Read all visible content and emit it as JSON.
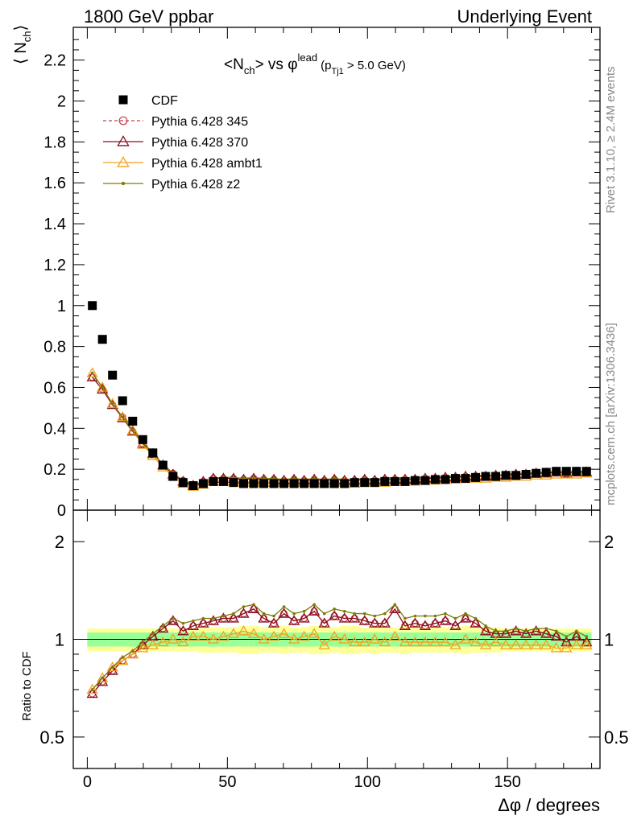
{
  "header": {
    "left": "1800 GeV ppbar",
    "right": "Underlying Event",
    "title_main": "<N",
    "title_sub": "ch",
    "title_vs": "> vs φ",
    "title_sup": "lead",
    "title_cut_a": "(p",
    "title_cut_sub": "Tj1",
    "title_cut_b": " > 5.0 GeV)"
  },
  "side_text": {
    "rivet": "Rivet 3.1.10, ≥ 2.4M events",
    "mcplots": "mcplots.cern.ch [arXiv:1306.3436]"
  },
  "axes": {
    "ylabel_main": "⟨ N",
    "ylabel_main_sub": "ch",
    "ylabel_main_close": "⟩",
    "ylabel_ratio": "Ratio to CDF",
    "xlabel": "Δφ / degrees",
    "main_yticks": [
      "0",
      "0.2",
      "0.4",
      "0.6",
      "0.8",
      "1",
      "1.2",
      "1.4",
      "1.6",
      "1.8",
      "2",
      "2.2"
    ],
    "ratio_yticks": [
      "0.5",
      "1",
      "2"
    ],
    "xticks": [
      "0",
      "50",
      "100",
      "150"
    ]
  },
  "legend": [
    "CDF",
    "Pythia 6.428 345",
    "Pythia 6.428 370",
    "Pythia 6.428 ambt1",
    "Pythia 6.428 z2"
  ],
  "colors": {
    "cdf": "#000000",
    "p345": "#c0404a",
    "p370": "#8b0f1f",
    "ambt1": "#f2a11c",
    "z2": "#7b7b0a",
    "band_outer": "#ffff99",
    "band_inner": "#99ff99"
  },
  "chart_data": [
    {
      "type": "scatter",
      "title": "<Nch> vs φlead (pTj1 > 5.0 GeV)",
      "xlabel": "Δφ / degrees",
      "ylabel": "⟨ Nch ⟩",
      "xlim": [
        -5,
        183
      ],
      "ylim": [
        0,
        2.36
      ],
      "x": [
        1.8,
        5.4,
        9.0,
        12.6,
        16.2,
        19.8,
        23.4,
        27.0,
        30.6,
        34.2,
        37.8,
        41.4,
        45.0,
        48.6,
        52.2,
        55.8,
        59.4,
        63.0,
        66.6,
        70.2,
        73.8,
        77.4,
        81.0,
        84.6,
        88.2,
        91.8,
        95.4,
        99.0,
        102.6,
        106.2,
        109.8,
        113.4,
        117.0,
        120.6,
        124.2,
        127.8,
        131.4,
        135.0,
        138.6,
        142.2,
        145.8,
        149.4,
        153.0,
        156.6,
        160.2,
        163.8,
        167.4,
        171.0,
        174.6,
        178.2
      ],
      "series": [
        {
          "name": "CDF",
          "values": [
            1.0,
            0.835,
            0.66,
            0.535,
            0.435,
            0.345,
            0.28,
            0.22,
            0.165,
            0.135,
            0.12,
            0.13,
            0.14,
            0.14,
            0.135,
            0.13,
            0.13,
            0.13,
            0.13,
            0.13,
            0.13,
            0.13,
            0.13,
            0.13,
            0.13,
            0.13,
            0.135,
            0.135,
            0.135,
            0.14,
            0.14,
            0.14,
            0.145,
            0.145,
            0.15,
            0.15,
            0.155,
            0.155,
            0.16,
            0.165,
            0.165,
            0.17,
            0.17,
            0.175,
            0.18,
            0.185,
            0.19,
            0.19,
            0.19,
            0.19
          ]
        },
        {
          "name": "Pythia 6.428 345",
          "values": [
            0.65,
            0.59,
            0.515,
            0.455,
            0.385,
            0.325,
            0.275,
            0.225,
            0.18,
            0.145,
            0.125,
            0.14,
            0.155,
            0.155,
            0.155,
            0.15,
            0.155,
            0.15,
            0.15,
            0.145,
            0.15,
            0.145,
            0.15,
            0.145,
            0.15,
            0.145,
            0.145,
            0.15,
            0.145,
            0.15,
            0.15,
            0.15,
            0.15,
            0.155,
            0.155,
            0.16,
            0.16,
            0.165,
            0.165,
            0.165,
            0.17,
            0.17,
            0.175,
            0.175,
            0.18,
            0.18,
            0.185,
            0.18,
            0.185,
            0.185
          ]
        },
        {
          "name": "Pythia 6.428 370",
          "values": [
            0.65,
            0.59,
            0.515,
            0.45,
            0.385,
            0.325,
            0.275,
            0.22,
            0.175,
            0.14,
            0.12,
            0.14,
            0.155,
            0.155,
            0.155,
            0.15,
            0.155,
            0.15,
            0.15,
            0.145,
            0.15,
            0.145,
            0.15,
            0.145,
            0.15,
            0.145,
            0.145,
            0.15,
            0.145,
            0.15,
            0.15,
            0.15,
            0.15,
            0.155,
            0.155,
            0.16,
            0.16,
            0.165,
            0.165,
            0.165,
            0.17,
            0.17,
            0.175,
            0.175,
            0.18,
            0.18,
            0.185,
            0.18,
            0.185,
            0.185
          ]
        },
        {
          "name": "Pythia 6.428 ambt1",
          "values": [
            0.67,
            0.6,
            0.52,
            0.455,
            0.39,
            0.32,
            0.265,
            0.21,
            0.165,
            0.13,
            0.115,
            0.125,
            0.14,
            0.14,
            0.14,
            0.135,
            0.14,
            0.135,
            0.135,
            0.135,
            0.135,
            0.135,
            0.135,
            0.13,
            0.135,
            0.135,
            0.13,
            0.135,
            0.135,
            0.135,
            0.14,
            0.14,
            0.14,
            0.145,
            0.145,
            0.15,
            0.15,
            0.155,
            0.155,
            0.155,
            0.16,
            0.16,
            0.165,
            0.165,
            0.17,
            0.17,
            0.175,
            0.175,
            0.175,
            0.18
          ]
        },
        {
          "name": "Pythia 6.428 z2",
          "values": [
            0.67,
            0.6,
            0.52,
            0.455,
            0.39,
            0.33,
            0.28,
            0.225,
            0.18,
            0.145,
            0.125,
            0.14,
            0.155,
            0.16,
            0.16,
            0.155,
            0.16,
            0.155,
            0.155,
            0.15,
            0.155,
            0.15,
            0.155,
            0.15,
            0.155,
            0.15,
            0.15,
            0.155,
            0.15,
            0.155,
            0.16,
            0.155,
            0.16,
            0.16,
            0.16,
            0.165,
            0.165,
            0.17,
            0.17,
            0.17,
            0.17,
            0.175,
            0.18,
            0.18,
            0.185,
            0.185,
            0.19,
            0.19,
            0.19,
            0.19
          ]
        }
      ]
    },
    {
      "type": "line",
      "ylabel": "Ratio to CDF",
      "scale": "log",
      "ylim": [
        0.4,
        2.5
      ],
      "band_outer_halfwidth": [
        0.08,
        0.08,
        0.08,
        0.08,
        0.08,
        0.08,
        0.08,
        0.08,
        0.08,
        0.08,
        0.08,
        0.09,
        0.09,
        0.09,
        0.09,
        0.1,
        0.1,
        0.09,
        0.09,
        0.1,
        0.09,
        0.09,
        0.1,
        0.1,
        0.09,
        0.1,
        0.1,
        0.09,
        0.1,
        0.09,
        0.09,
        0.1,
        0.09,
        0.09,
        0.09,
        0.09,
        0.09,
        0.1,
        0.09,
        0.09,
        0.09,
        0.08,
        0.08,
        0.08,
        0.08,
        0.08,
        0.08,
        0.08,
        0.08,
        0.08
      ],
      "band_inner_halfwidth": [
        0.05,
        0.05,
        0.05,
        0.05,
        0.05,
        0.05,
        0.05,
        0.05,
        0.05,
        0.05,
        0.05,
        0.05,
        0.05,
        0.05,
        0.05,
        0.05,
        0.05,
        0.05,
        0.05,
        0.05,
        0.05,
        0.05,
        0.05,
        0.05,
        0.05,
        0.05,
        0.05,
        0.05,
        0.05,
        0.05,
        0.05,
        0.05,
        0.05,
        0.05,
        0.05,
        0.05,
        0.05,
        0.05,
        0.05,
        0.05,
        0.05,
        0.05,
        0.05,
        0.05,
        0.05,
        0.05,
        0.05,
        0.05,
        0.05,
        0.05
      ],
      "series": [
        {
          "name": "Pythia 6.428 345",
          "values": [
            0.68,
            0.74,
            0.8,
            0.86,
            0.9,
            0.96,
            1.02,
            1.08,
            1.14,
            1.06,
            1.1,
            1.12,
            1.14,
            1.16,
            1.16,
            1.2,
            1.24,
            1.16,
            1.12,
            1.2,
            1.14,
            1.16,
            1.22,
            1.12,
            1.18,
            1.16,
            1.16,
            1.14,
            1.12,
            1.12,
            1.24,
            1.1,
            1.12,
            1.1,
            1.12,
            1.14,
            1.1,
            1.16,
            1.12,
            1.06,
            1.04,
            1.04,
            1.06,
            1.04,
            1.06,
            1.04,
            1.02,
            0.98,
            1.02,
            0.98
          ]
        },
        {
          "name": "Pythia 6.428 370",
          "values": [
            0.68,
            0.74,
            0.8,
            0.86,
            0.9,
            0.96,
            1.02,
            1.08,
            1.14,
            1.06,
            1.1,
            1.12,
            1.14,
            1.16,
            1.16,
            1.2,
            1.24,
            1.16,
            1.12,
            1.2,
            1.14,
            1.16,
            1.22,
            1.12,
            1.18,
            1.16,
            1.16,
            1.14,
            1.12,
            1.12,
            1.24,
            1.1,
            1.12,
            1.1,
            1.12,
            1.14,
            1.1,
            1.16,
            1.12,
            1.06,
            1.04,
            1.04,
            1.06,
            1.04,
            1.06,
            1.04,
            1.02,
            0.98,
            1.02,
            0.98
          ]
        },
        {
          "name": "Pythia 6.428 ambt1",
          "values": [
            0.7,
            0.76,
            0.82,
            0.86,
            0.9,
            0.94,
            0.96,
            0.98,
            1.0,
            0.98,
            1.02,
            1.02,
            1.0,
            1.02,
            1.04,
            1.06,
            1.04,
            1.0,
            1.02,
            1.04,
            1.0,
            1.02,
            1.04,
            0.96,
            1.02,
            1.0,
            0.98,
            0.98,
            1.0,
            0.98,
            1.02,
            0.98,
            0.98,
            0.98,
            0.98,
            0.98,
            0.96,
            1.0,
            0.98,
            0.96,
            0.98,
            0.96,
            0.96,
            0.96,
            0.96,
            0.96,
            0.94,
            0.94,
            0.96,
            0.96
          ]
        },
        {
          "name": "Pythia 6.428 z2",
          "values": [
            0.7,
            0.76,
            0.82,
            0.88,
            0.92,
            0.98,
            1.04,
            1.1,
            1.16,
            1.12,
            1.14,
            1.16,
            1.16,
            1.18,
            1.2,
            1.26,
            1.28,
            1.2,
            1.18,
            1.26,
            1.2,
            1.22,
            1.28,
            1.2,
            1.24,
            1.22,
            1.2,
            1.2,
            1.18,
            1.2,
            1.28,
            1.16,
            1.18,
            1.18,
            1.18,
            1.2,
            1.16,
            1.2,
            1.16,
            1.1,
            1.06,
            1.06,
            1.08,
            1.06,
            1.08,
            1.08,
            1.06,
            1.02,
            1.06,
            1.02
          ]
        }
      ]
    }
  ]
}
